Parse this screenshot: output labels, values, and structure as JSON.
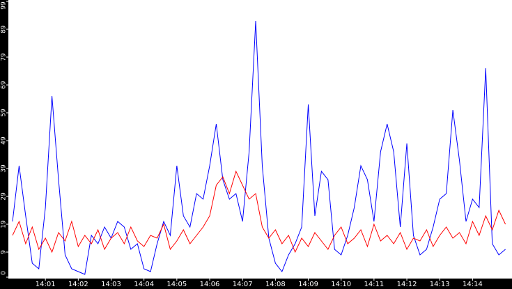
{
  "chart_data": {
    "type": "line",
    "x": [
      0,
      0.2,
      0.4,
      0.6,
      0.8,
      1,
      1.2,
      1.4,
      1.6,
      1.8,
      2,
      2.2,
      2.4,
      2.6,
      2.8,
      3,
      3.2,
      3.4,
      3.6,
      3.8,
      4,
      4.2,
      4.4,
      4.6,
      4.8,
      5,
      5.2,
      5.4,
      5.6,
      5.8,
      6,
      6.2,
      6.4,
      6.6,
      6.8,
      7,
      7.2,
      7.4,
      7.6,
      7.8,
      8,
      8.2,
      8.4,
      8.6,
      8.8,
      9,
      9.2,
      9.4,
      9.6,
      9.8,
      10,
      10.2,
      10.4,
      10.6,
      10.8,
      11,
      11.2,
      11.4,
      11.6,
      11.8,
      12,
      12.2,
      12.4,
      12.6,
      12.8,
      13,
      13.2,
      13.4,
      13.6,
      13.8,
      14,
      14.2,
      14.4,
      14.6,
      14.8,
      15
    ],
    "series": [
      {
        "color": "#0000ff",
        "values": [
          20,
          40,
          22,
          5,
          3,
          25,
          65,
          35,
          8,
          3,
          2,
          1,
          15,
          12,
          18,
          14,
          20,
          18,
          10,
          12,
          3,
          2,
          12,
          20,
          15,
          40,
          22,
          18,
          30,
          28,
          40,
          55,
          35,
          28,
          30,
          20,
          45,
          92,
          40,
          14,
          5,
          2,
          8,
          12,
          18,
          62,
          22,
          38,
          35,
          10,
          8,
          15,
          25,
          40,
          35,
          20,
          45,
          55,
          45,
          18,
          48,
          15,
          8,
          10,
          18,
          28,
          30,
          60,
          42,
          20,
          28,
          25,
          75,
          12,
          8,
          10
        ]
      },
      {
        "color": "#ff0000",
        "values": [
          15,
          20,
          12,
          18,
          10,
          14,
          9,
          16,
          13,
          20,
          11,
          15,
          12,
          17,
          10,
          14,
          16,
          12,
          18,
          13,
          11,
          15,
          14,
          19,
          10,
          13,
          17,
          12,
          15,
          18,
          22,
          33,
          36,
          30,
          38,
          33,
          28,
          30,
          18,
          14,
          17,
          12,
          15,
          9,
          14,
          11,
          16,
          13,
          10,
          15,
          18,
          12,
          14,
          17,
          11,
          19,
          13,
          15,
          12,
          16,
          10,
          14,
          13,
          17,
          11,
          15,
          18,
          14,
          16,
          12,
          20,
          15,
          22,
          17,
          24,
          19
        ]
      }
    ],
    "xlim": [
      -0.127,
      15.2
    ],
    "xticks": [
      {
        "value": 1,
        "label": "14:01"
      },
      {
        "value": 2,
        "label": "14:02"
      },
      {
        "value": 3,
        "label": "14:03"
      },
      {
        "value": 4,
        "label": "14:04"
      },
      {
        "value": 5,
        "label": "14:05"
      },
      {
        "value": 6,
        "label": "14:06"
      },
      {
        "value": 7,
        "label": "14:07"
      },
      {
        "value": 8,
        "label": "14:08"
      },
      {
        "value": 9,
        "label": "14:09"
      },
      {
        "value": 10,
        "label": "14:10"
      },
      {
        "value": 11,
        "label": "14:11"
      },
      {
        "value": 12,
        "label": "14:12"
      },
      {
        "value": 13,
        "label": "14:13"
      },
      {
        "value": 14,
        "label": "14:14"
      }
    ],
    "ylim": [
      0,
      99
    ],
    "yticks": [
      0,
      9,
      19,
      29,
      39,
      49,
      59,
      69,
      79,
      89,
      99
    ]
  }
}
